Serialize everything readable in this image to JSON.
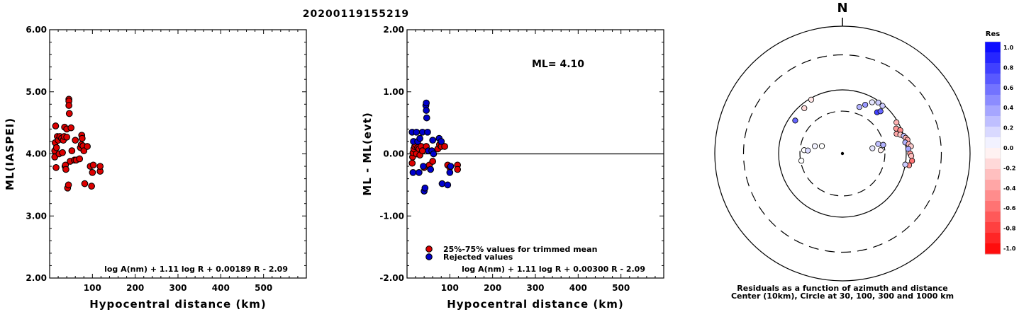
{
  "title": "20200119155219",
  "chart_data": [
    {
      "type": "scatter",
      "xlabel": "Hypocentral distance (km)",
      "ylabel": "ML(IASPEI)",
      "xlim": [
        0,
        600
      ],
      "ylim": [
        2,
        6
      ],
      "xticks": [
        "100",
        "200",
        "300",
        "400",
        "500"
      ],
      "yticks": [
        "2.00",
        "3.00",
        "4.00",
        "5.00",
        "6.00"
      ],
      "formula": "log A(nm) + 1.11 log R + 0.00189 R - 2.09",
      "color": "#dd0000",
      "points": [
        [
          12,
          3.95
        ],
        [
          12,
          4.05
        ],
        [
          13,
          4.18
        ],
        [
          14,
          4.45
        ],
        [
          15,
          3.78
        ],
        [
          16,
          4.1
        ],
        [
          18,
          4.28
        ],
        [
          20,
          4.22
        ],
        [
          22,
          4.0
        ],
        [
          24,
          4.28
        ],
        [
          28,
          4.25
        ],
        [
          30,
          4.02
        ],
        [
          32,
          4.22
        ],
        [
          34,
          4.28
        ],
        [
          35,
          4.43
        ],
        [
          36,
          3.8
        ],
        [
          37,
          3.82
        ],
        [
          38,
          3.75
        ],
        [
          40,
          4.4
        ],
        [
          40,
          4.27
        ],
        [
          42,
          3.45
        ],
        [
          44,
          3.5
        ],
        [
          45,
          4.88
        ],
        [
          45,
          4.85
        ],
        [
          45,
          4.78
        ],
        [
          46,
          4.65
        ],
        [
          48,
          3.88
        ],
        [
          50,
          4.42
        ],
        [
          52,
          4.05
        ],
        [
          58,
          3.9
        ],
        [
          60,
          4.22
        ],
        [
          62,
          3.9
        ],
        [
          70,
          3.92
        ],
        [
          72,
          4.1
        ],
        [
          74,
          4.15
        ],
        [
          75,
          4.3
        ],
        [
          76,
          4.25
        ],
        [
          78,
          4.13
        ],
        [
          80,
          4.05
        ],
        [
          82,
          3.52
        ],
        [
          88,
          4.12
        ],
        [
          95,
          3.8
        ],
        [
          98,
          3.48
        ],
        [
          100,
          3.7
        ],
        [
          102,
          3.82
        ],
        [
          118,
          3.72
        ],
        [
          118,
          3.8
        ]
      ]
    },
    {
      "type": "scatter",
      "xlabel": "Hypocentral distance (km)",
      "ylabel": "ML - ML(evt)",
      "xlim": [
        0,
        600
      ],
      "ylim": [
        -2,
        2
      ],
      "xticks": [
        "100",
        "200",
        "300",
        "400",
        "500"
      ],
      "yticks": [
        "-2.00",
        "-1.00",
        "0.00",
        "1.00",
        "2.00"
      ],
      "annotation": "ML= 4.10",
      "formula": "log A(nm) + 1.11 log R + 0.00300 R - 2.09",
      "legend": [
        {
          "label": "25%-75% values for trimmed mean",
          "color": "#dd0000"
        },
        {
          "label": "Rejected values",
          "color": "#0000cc"
        }
      ],
      "accepted": [
        [
          12,
          -0.15
        ],
        [
          13,
          -0.05
        ],
        [
          14,
          0.02
        ],
        [
          16,
          0.08
        ],
        [
          18,
          0.12
        ],
        [
          20,
          0.15
        ],
        [
          22,
          0.0
        ],
        [
          25,
          0.1
        ],
        [
          28,
          0.08
        ],
        [
          30,
          -0.02
        ],
        [
          33,
          0.12
        ],
        [
          36,
          0.05
        ],
        [
          40,
          -0.22
        ],
        [
          45,
          0.12
        ],
        [
          52,
          -0.18
        ],
        [
          60,
          -0.12
        ],
        [
          72,
          0.08
        ],
        [
          76,
          0.15
        ],
        [
          80,
          0.12
        ],
        [
          88,
          0.12
        ],
        [
          95,
          -0.18
        ],
        [
          100,
          -0.22
        ],
        [
          118,
          -0.18
        ],
        [
          118,
          -0.25
        ]
      ],
      "rejected": [
        [
          12,
          0.35
        ],
        [
          14,
          -0.3
        ],
        [
          15,
          0.2
        ],
        [
          22,
          0.35
        ],
        [
          25,
          0.2
        ],
        [
          28,
          -0.3
        ],
        [
          30,
          0.25
        ],
        [
          36,
          0.35
        ],
        [
          38,
          -0.2
        ],
        [
          40,
          -0.6
        ],
        [
          42,
          -0.55
        ],
        [
          44,
          0.78
        ],
        [
          45,
          0.82
        ],
        [
          45,
          0.7
        ],
        [
          46,
          0.58
        ],
        [
          48,
          0.35
        ],
        [
          50,
          0.05
        ],
        [
          55,
          -0.25
        ],
        [
          58,
          0.05
        ],
        [
          60,
          0.22
        ],
        [
          62,
          0.0
        ],
        [
          75,
          0.25
        ],
        [
          80,
          0.2
        ],
        [
          82,
          -0.48
        ],
        [
          95,
          -0.5
        ],
        [
          100,
          -0.3
        ],
        [
          102,
          -0.2
        ]
      ]
    },
    {
      "type": "scatter",
      "north_label": "N",
      "caption": "Residuals as a function of azimuth and distance",
      "caption2": "Center (10km), Circle at 30, 100, 300 and 1000 km",
      "colorbar": {
        "title": "Res",
        "labels": [
          "1.0",
          "0.8",
          "0.6",
          "0.4",
          "0.2",
          "0.0",
          "-0.2",
          "-0.4",
          "-0.6",
          "-0.8",
          "-1.0"
        ]
      },
      "stations": [
        {
          "azimuth": 260,
          "distance": 45,
          "residual": 0.0
        },
        {
          "azimuth": 275,
          "distance": 40,
          "residual": 0.0
        },
        {
          "azimuth": 285,
          "distance": 28,
          "residual": 0.05
        },
        {
          "azimuth": 290,
          "distance": 22,
          "residual": 0.0
        },
        {
          "azimuth": 275,
          "distance": 35,
          "residual": 0.15
        },
        {
          "azimuth": 305,
          "distance": 80,
          "residual": 0.6
        },
        {
          "azimuth": 320,
          "distance": 85,
          "residual": -0.15
        },
        {
          "azimuth": 330,
          "distance": 95,
          "residual": -0.1
        },
        {
          "azimuth": 20,
          "distance": 60,
          "residual": 0.3
        },
        {
          "azimuth": 25,
          "distance": 70,
          "residual": 0.4
        },
        {
          "azimuth": 30,
          "distance": 85,
          "residual": 0.1
        },
        {
          "azimuth": 35,
          "distance": 95,
          "residual": 0.2
        },
        {
          "azimuth": 40,
          "distance": 95,
          "residual": 0.2
        },
        {
          "azimuth": 40,
          "distance": 70,
          "residual": 0.75
        },
        {
          "azimuth": 42,
          "distance": 78,
          "residual": 0.6
        },
        {
          "azimuth": 80,
          "distance": 30,
          "residual": 0.1
        },
        {
          "azimuth": 75,
          "distance": 38,
          "residual": 0.25
        },
        {
          "azimuth": 78,
          "distance": 45,
          "residual": 0.3
        },
        {
          "azimuth": 85,
          "distance": 40,
          "residual": -0.05
        },
        {
          "azimuth": 60,
          "distance": 95,
          "residual": -0.3
        },
        {
          "azimuth": 65,
          "distance": 85,
          "residual": -0.4
        },
        {
          "azimuth": 70,
          "distance": 80,
          "residual": -0.35
        },
        {
          "azimuth": 68,
          "distance": 95,
          "residual": -0.45
        },
        {
          "azimuth": 72,
          "distance": 90,
          "residual": -0.2
        },
        {
          "azimuth": 74,
          "distance": 100,
          "residual": 0.25
        },
        {
          "azimuth": 76,
          "distance": 105,
          "residual": -0.3
        },
        {
          "azimuth": 78,
          "distance": 110,
          "residual": -0.35
        },
        {
          "azimuth": 80,
          "distance": 100,
          "residual": 0.3
        },
        {
          "azimuth": 82,
          "distance": 112,
          "residual": -0.3
        },
        {
          "azimuth": 84,
          "distance": 120,
          "residual": -0.2
        },
        {
          "azimuth": 86,
          "distance": 108,
          "residual": 0.35
        },
        {
          "azimuth": 90,
          "distance": 115,
          "residual": -0.4
        },
        {
          "azimuth": 92,
          "distance": 120,
          "residual": -0.25
        },
        {
          "azimuth": 96,
          "distance": 125,
          "residual": -0.55
        },
        {
          "azimuth": 100,
          "distance": 115,
          "residual": -0.45
        },
        {
          "azimuth": 100,
          "distance": 100,
          "residual": 0.2
        }
      ]
    }
  ]
}
